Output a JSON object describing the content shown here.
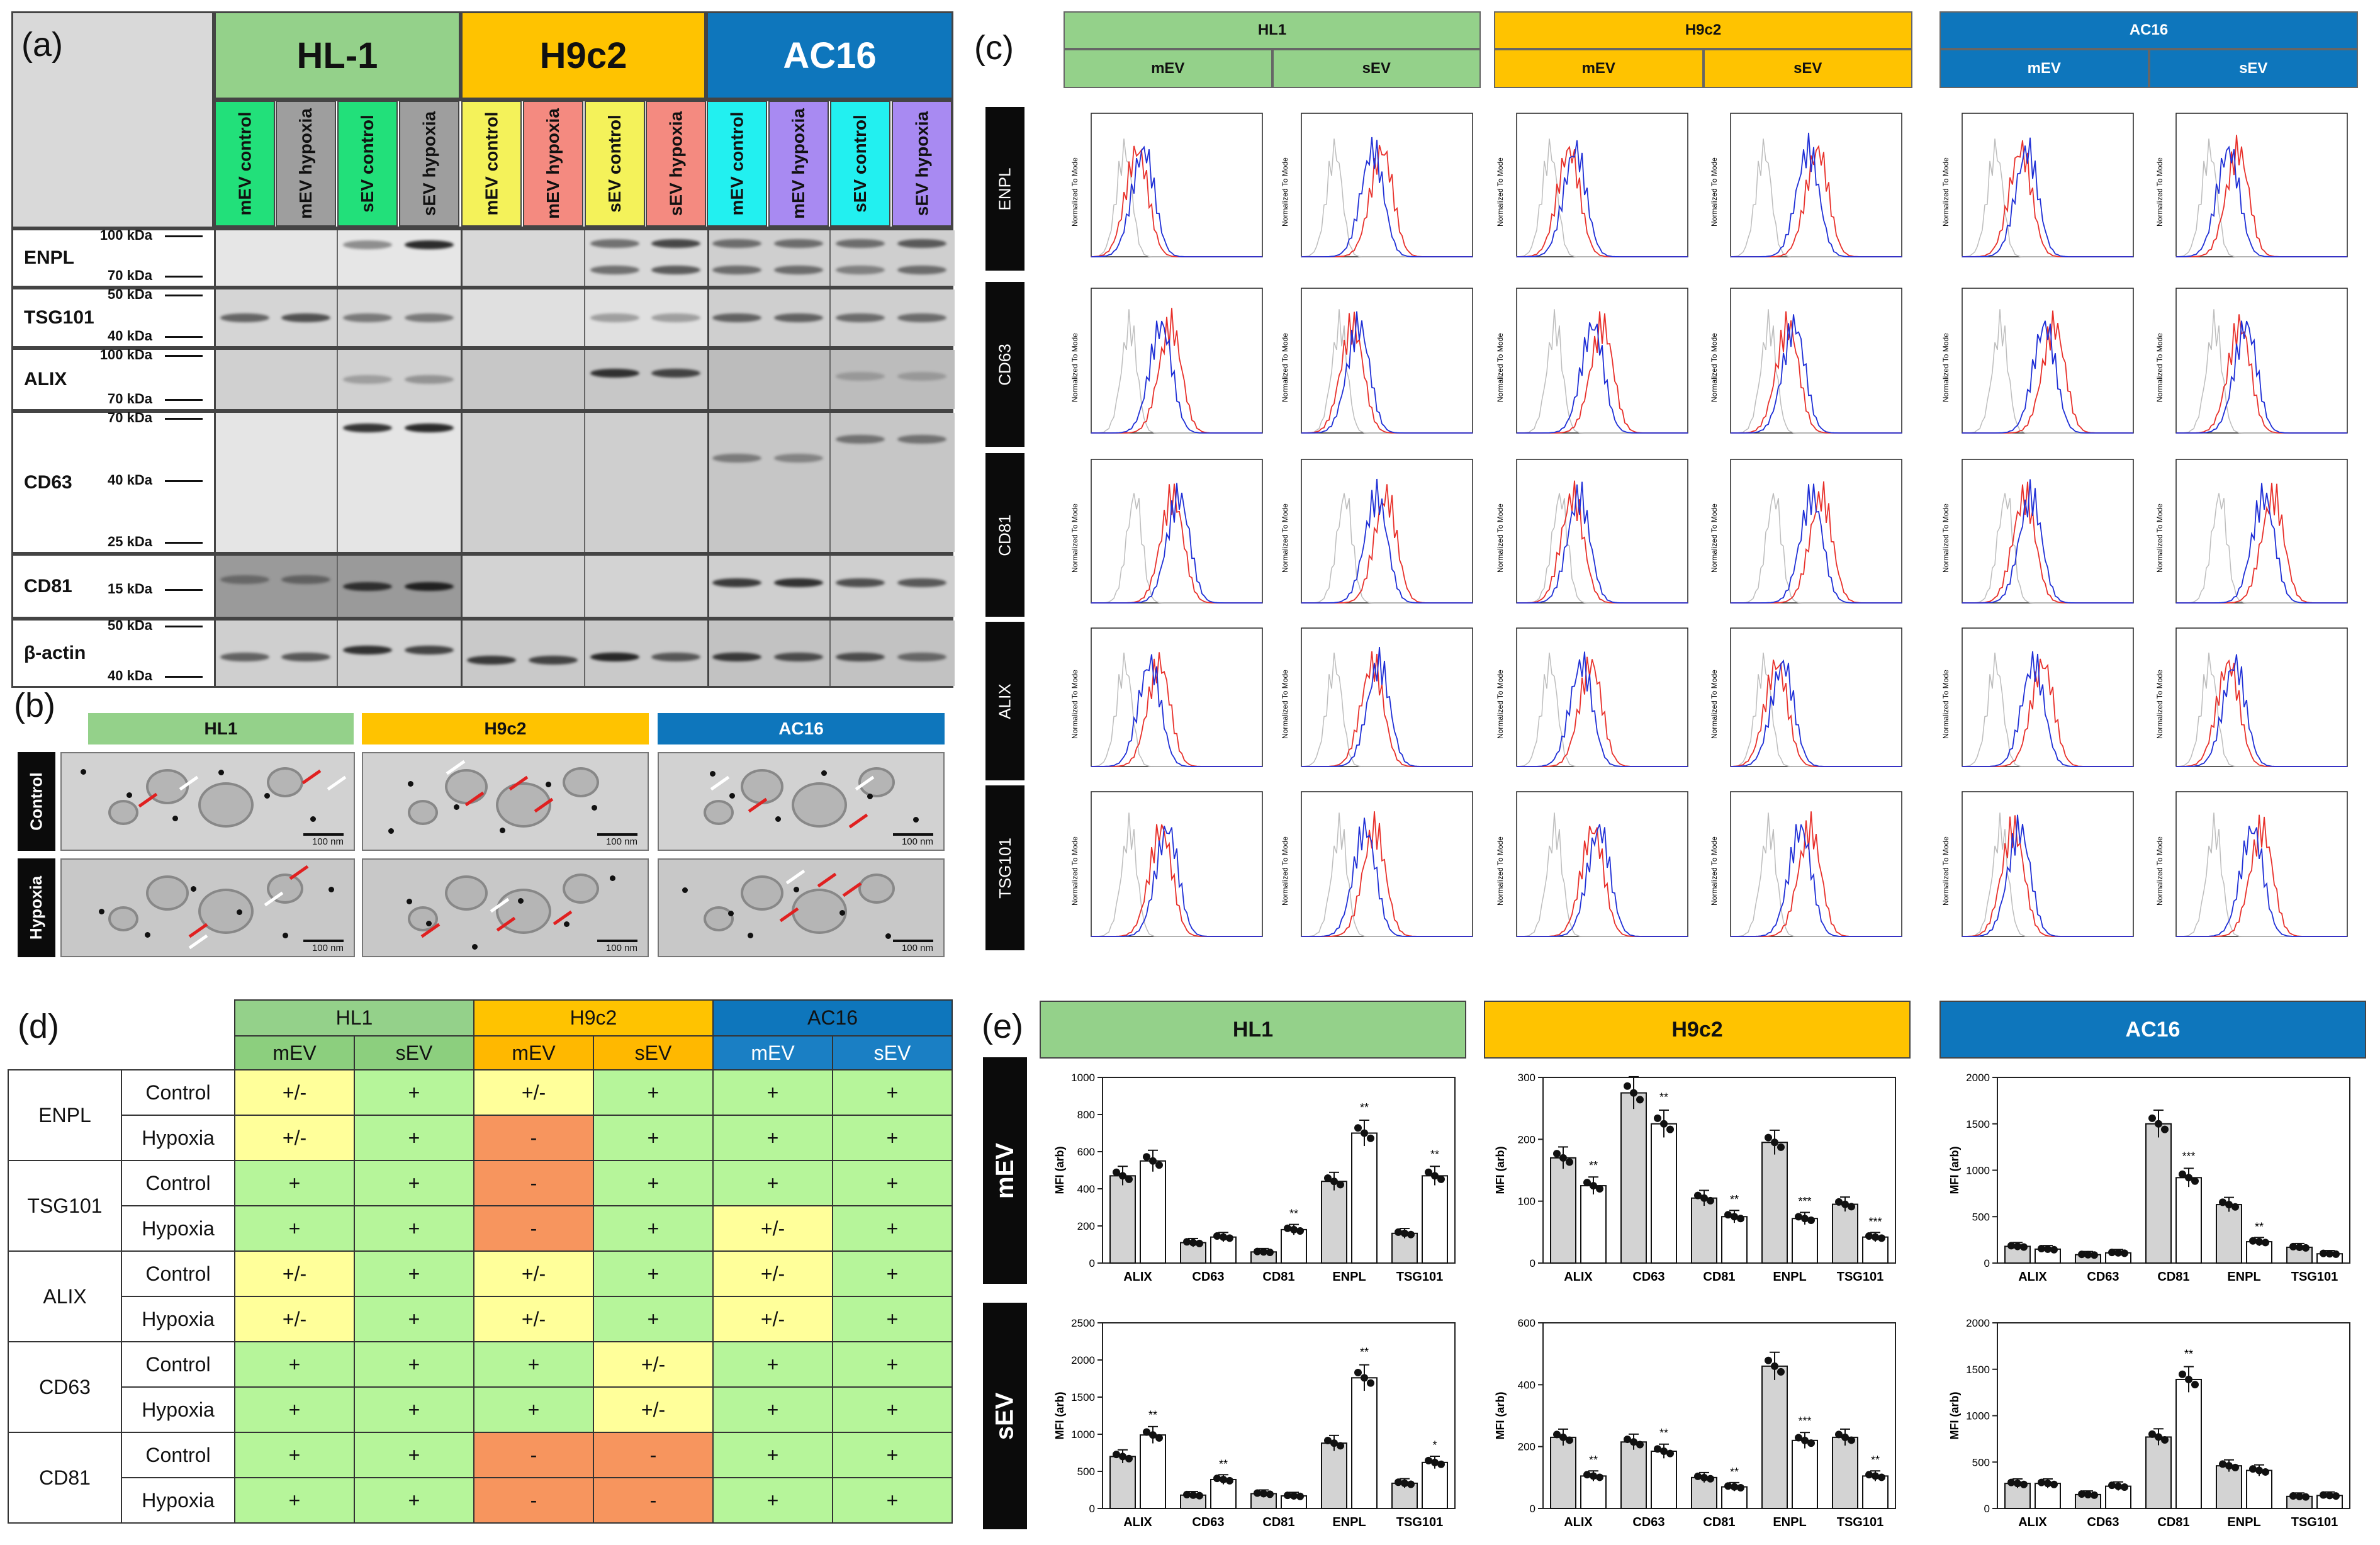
{
  "panels": {
    "a": "(a)",
    "b": "(b)",
    "c": "(c)",
    "d": "(d)",
    "e": "(e)"
  },
  "cell_lines": {
    "hl1_dash": "HL-1",
    "h9c2": "H9c2",
    "ac16": "AC16",
    "hl1": "HL1"
  },
  "colors": {
    "green": "#94d18a",
    "yellow": "#ffc300",
    "blue": "#0e76bc",
    "red_line": "#e8302a",
    "blue_line": "#1f2fd6",
    "grey_line": "#bdbdbd"
  },
  "western": {
    "lanes": [
      "mEV control",
      "mEV hypoxia",
      "sEV control",
      "sEV hypoxia",
      "mEV control",
      "mEV hypoxia",
      "sEV control",
      "sEV hypoxia",
      "mEV control",
      "mEV hypoxia",
      "sEV control",
      "sEV hypoxia"
    ],
    "lane_colors": [
      "#22e07a",
      "#9e9e9e",
      "#22e07a",
      "#9e9e9e",
      "#f4f25a",
      "#f48a80",
      "#f4f25a",
      "#f48a80",
      "#22f0f0",
      "#a88af2",
      "#22f0f0",
      "#a88af2"
    ],
    "rows": [
      {
        "name": "ENPL",
        "markers": [
          "100 kDa",
          "70 kDa"
        ]
      },
      {
        "name": "TSG101",
        "markers": [
          "50 kDa",
          "40 kDa"
        ]
      },
      {
        "name": "ALIX",
        "markers": [
          "100 kDa",
          "70 kDa"
        ]
      },
      {
        "name": "CD63",
        "markers": [
          "70 kDa",
          "40 kDa",
          "25 kDa"
        ]
      },
      {
        "name": "CD81",
        "markers": [
          "15 kDa"
        ]
      },
      {
        "name": "β-actin",
        "markers": [
          "50 kDa",
          "40 kDa"
        ]
      }
    ]
  },
  "em": {
    "headers": [
      "HL1",
      "H9c2",
      "AC16"
    ],
    "rows": [
      "Control",
      "Hypoxia"
    ],
    "scale": "100 nm"
  },
  "flow": {
    "groups": [
      {
        "name": "HL1",
        "subs": [
          "mEV",
          "sEV"
        ]
      },
      {
        "name": "H9c2",
        "subs": [
          "mEV",
          "sEV"
        ]
      },
      {
        "name": "AC16",
        "subs": [
          "mEV",
          "sEV"
        ]
      }
    ],
    "markers": [
      "ENPL",
      "CD63",
      "CD81",
      "ALIX",
      "TSG101"
    ],
    "ylabel": "Normalized To Mode"
  },
  "table": {
    "groups": [
      "HL1",
      "H9c2",
      "AC16"
    ],
    "subs": [
      "mEV",
      "sEV",
      "mEV",
      "sEV",
      "mEV",
      "sEV"
    ],
    "rows": [
      {
        "marker": "ENPL",
        "cond": "Control",
        "vals": [
          "+/-",
          "+",
          "+/-",
          "+",
          "+",
          "+"
        ]
      },
      {
        "marker": "",
        "cond": "Hypoxia",
        "vals": [
          "+/-",
          "+",
          "-",
          "+",
          "+",
          "+"
        ]
      },
      {
        "marker": "TSG101",
        "cond": "Control",
        "vals": [
          "+",
          "+",
          "-",
          "+",
          "+",
          "+"
        ]
      },
      {
        "marker": "",
        "cond": "Hypoxia",
        "vals": [
          "+",
          "+",
          "-",
          "+",
          "+/-",
          "+"
        ]
      },
      {
        "marker": "ALIX",
        "cond": "Control",
        "vals": [
          "+/-",
          "+",
          "+/-",
          "+",
          "+/-",
          "+"
        ]
      },
      {
        "marker": "",
        "cond": "Hypoxia",
        "vals": [
          "+/-",
          "+",
          "+/-",
          "+",
          "+/-",
          "+"
        ]
      },
      {
        "marker": "CD63",
        "cond": "Control",
        "vals": [
          "+",
          "+",
          "+",
          "+/-",
          "+",
          "+"
        ]
      },
      {
        "marker": "",
        "cond": "Hypoxia",
        "vals": [
          "+",
          "+",
          "+",
          "+/-",
          "+",
          "+"
        ]
      },
      {
        "marker": "CD81",
        "cond": "Control",
        "vals": [
          "+",
          "+",
          "-",
          "-",
          "+",
          "+"
        ]
      },
      {
        "marker": "",
        "cond": "Hypoxia",
        "vals": [
          "+",
          "+",
          "-",
          "-",
          "+",
          "+"
        ]
      }
    ],
    "cell_colors": {
      "+": "#b6f59a",
      "+/-": "#ffff9a",
      "-": "#f7955e"
    }
  },
  "chart_data": [
    {
      "type": "bar",
      "title": "HL1 mEV",
      "ylabel": "MFI (arb)",
      "ylim": [
        0,
        1000
      ],
      "yticks": [
        0,
        200,
        400,
        600,
        800,
        1000
      ],
      "categories": [
        "ALIX",
        "CD63",
        "CD81",
        "ENPL",
        "TSG101"
      ],
      "series": [
        {
          "name": "Control",
          "values": [
            470,
            110,
            60,
            440,
            160
          ]
        },
        {
          "name": "Hypoxia",
          "values": [
            550,
            140,
            180,
            700,
            470
          ]
        }
      ],
      "sig": [
        "",
        "",
        "**",
        "**",
        "**"
      ]
    },
    {
      "type": "bar",
      "title": "H9c2 mEV",
      "ylabel": "MFI (arb)",
      "ylim": [
        0,
        300
      ],
      "yticks": [
        0,
        100,
        200,
        300
      ],
      "categories": [
        "ALIX",
        "CD63",
        "CD81",
        "ENPL",
        "TSG101"
      ],
      "series": [
        {
          "name": "Control",
          "values": [
            170,
            275,
            105,
            195,
            95
          ]
        },
        {
          "name": "Hypoxia",
          "values": [
            125,
            225,
            75,
            72,
            42
          ]
        }
      ],
      "sig": [
        "**",
        "**",
        "**",
        "***",
        "***"
      ]
    },
    {
      "type": "bar",
      "title": "AC16 mEV",
      "ylabel": "MFI (arb)",
      "ylim": [
        0,
        2000
      ],
      "yticks": [
        0,
        500,
        1000,
        1500,
        2000
      ],
      "categories": [
        "ALIX",
        "CD63",
        "CD81",
        "ENPL",
        "TSG101"
      ],
      "series": [
        {
          "name": "Control",
          "values": [
            180,
            90,
            1500,
            630,
            170
          ]
        },
        {
          "name": "Hypoxia",
          "values": [
            150,
            110,
            920,
            230,
            100
          ]
        }
      ],
      "sig": [
        "",
        "",
        "***",
        "**",
        ""
      ]
    },
    {
      "type": "bar",
      "title": "HL1 sEV",
      "ylabel": "MFI (arb)",
      "ylim": [
        0,
        2500
      ],
      "yticks": [
        0,
        500,
        1000,
        1500,
        2000,
        2500
      ],
      "categories": [
        "ALIX",
        "CD63",
        "CD81",
        "ENPL",
        "TSG101"
      ],
      "series": [
        {
          "name": "Control",
          "values": [
            700,
            180,
            200,
            880,
            340
          ]
        },
        {
          "name": "Hypoxia",
          "values": [
            990,
            390,
            170,
            1760,
            620
          ]
        }
      ],
      "sig": [
        "**",
        "**",
        "",
        "**",
        "*"
      ]
    },
    {
      "type": "bar",
      "title": "H9c2 sEV",
      "ylabel": "MFI (arb)",
      "ylim": [
        0,
        600
      ],
      "yticks": [
        0,
        200,
        400,
        600
      ],
      "categories": [
        "ALIX",
        "CD63",
        "CD81",
        "ENPL",
        "TSG101"
      ],
      "series": [
        {
          "name": "Control",
          "values": [
            230,
            215,
            100,
            460,
            230
          ]
        },
        {
          "name": "Hypoxia",
          "values": [
            105,
            185,
            70,
            220,
            105
          ]
        }
      ],
      "sig": [
        "**",
        "**",
        "**",
        "***",
        "**"
      ]
    },
    {
      "type": "bar",
      "title": "AC16 sEV",
      "ylabel": "MFI (arb)",
      "ylim": [
        0,
        2000
      ],
      "yticks": [
        0,
        500,
        1000,
        1500,
        2000
      ],
      "categories": [
        "ALIX",
        "CD63",
        "CD81",
        "ENPL",
        "TSG101"
      ],
      "series": [
        {
          "name": "Control",
          "values": [
            270,
            150,
            770,
            460,
            130
          ]
        },
        {
          "name": "Hypoxia",
          "values": [
            270,
            240,
            1390,
            410,
            140
          ]
        }
      ],
      "sig": [
        "",
        "",
        "**",
        "",
        ""
      ]
    }
  ],
  "bar_headers": [
    "HL1",
    "H9c2",
    "AC16"
  ],
  "bar_rows": [
    "mEV",
    "sEV"
  ]
}
